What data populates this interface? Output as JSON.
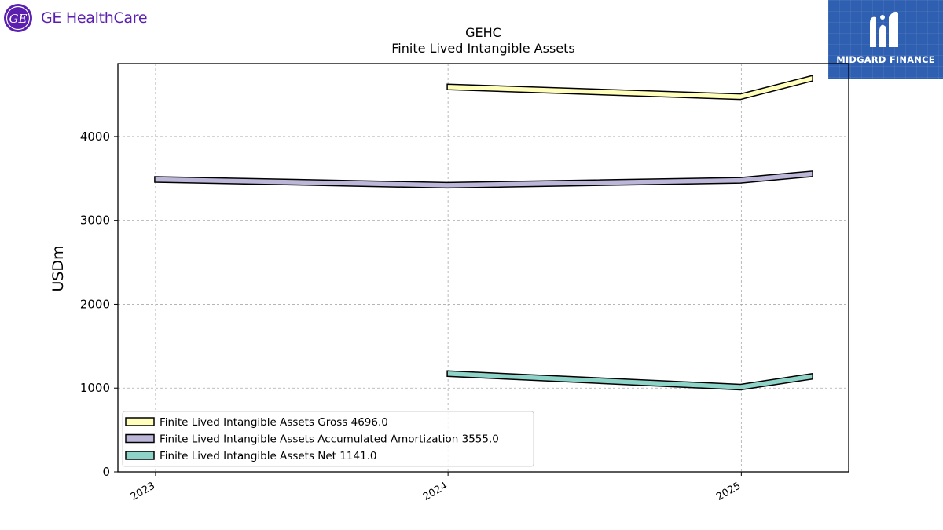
{
  "brand_left": {
    "name": "GE HealthCare",
    "icon": "ge-monogram-icon"
  },
  "brand_right": {
    "name": "MIDGARD FINANCE",
    "icon": "midgard-m-icon"
  },
  "chart_data": {
    "type": "area",
    "title": "GEHC",
    "subtitle": "Finite Lived Intangible Assets",
    "xlabel": "",
    "ylabel": "USDm",
    "x_ticks": [
      "2023",
      "2024",
      "2025"
    ],
    "y_ticks": [
      0,
      1000,
      2000,
      3000,
      4000
    ],
    "ylim": [
      0,
      4870
    ],
    "xlim": [
      "2022-11-15",
      "2025-05-15"
    ],
    "grid": true,
    "legend_position": "lower-left",
    "series": [
      {
        "name": "Finite Lived Intangible Assets Gross",
        "legend_label": "Finite Lived Intangible Assets Gross  4696.0",
        "color": "#ffffbb",
        "x": [
          "2023-12-31",
          "2024-12-31",
          "2025-03-31"
        ],
        "y": [
          4592,
          4476,
          4696
        ]
      },
      {
        "name": "Finite Lived Intangible Assets Accumulated Amortization",
        "legend_label": "Finite Lived Intangible Assets Accumulated Amortization  3555.0",
        "color": "#bcb6d9",
        "x": [
          "2022-12-31",
          "2023-12-31",
          "2024-12-31",
          "2025-03-31"
        ],
        "y": [
          3489,
          3419,
          3478,
          3555
        ]
      },
      {
        "name": "Finite Lived Intangible Assets Net",
        "legend_label": "Finite Lived Intangible Assets Net  1141.0",
        "color": "#8dd3c7",
        "x": [
          "2023-12-31",
          "2024-12-31",
          "2025-03-31"
        ],
        "y": [
          1173,
          1011,
          1141
        ]
      }
    ]
  }
}
